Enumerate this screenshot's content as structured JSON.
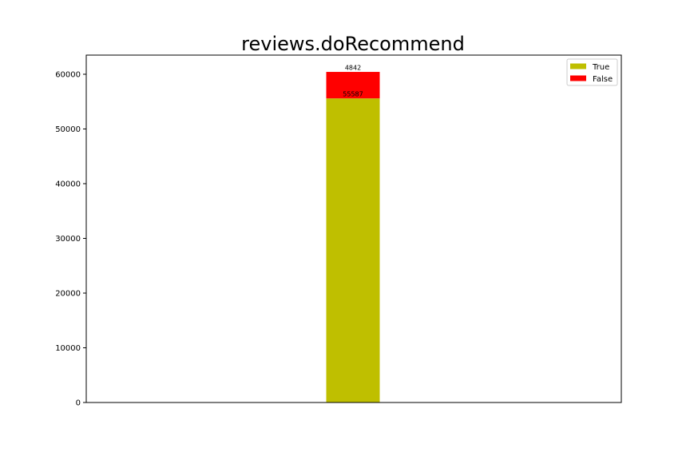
{
  "chart_data": {
    "type": "bar",
    "stacked": true,
    "title": "reviews.doRecommend",
    "xlabel": "",
    "ylabel": "",
    "categories": [
      ""
    ],
    "series": [
      {
        "name": "True",
        "values": [
          55587
        ],
        "color": "#bfbf00"
      },
      {
        "name": "False",
        "values": [
          4842
        ],
        "color": "#ff0000"
      }
    ],
    "ylim": [
      0,
      63500
    ],
    "yticks": [
      0,
      10000,
      20000,
      30000,
      40000,
      50000,
      60000
    ],
    "grid": false,
    "legend": "top-right"
  }
}
